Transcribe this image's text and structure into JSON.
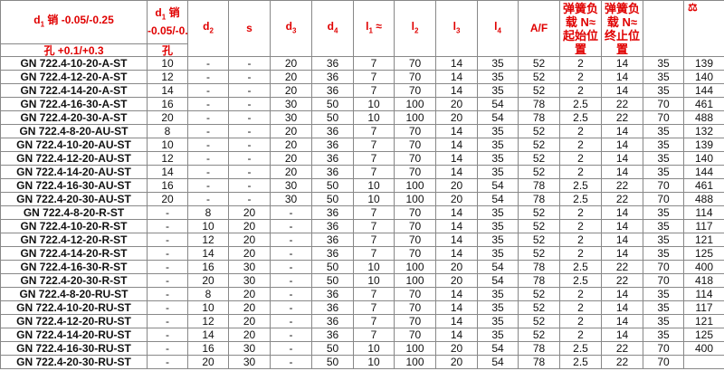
{
  "header": {
    "d1_pin": "销 -0.05/-0.25",
    "d1_pin_short": "销 -0.05/-0.25",
    "d1_hole": "孔 +0.1/+0.3",
    "d1_hole_short": "孔",
    "d": "d",
    "l": "l",
    "sub": {
      "1": "1",
      "2": "2",
      "3": "3",
      "4": "4"
    },
    "s": "s",
    "approx": "≈",
    "af": "A/F",
    "spring_start": "弹簧负载 N≈起始位置",
    "spring_end": "弹簧负载 N≈终止位置",
    "blank": "",
    "weight_icon": "⚖"
  },
  "colors": {
    "header_text": "#e00000",
    "grid": "#888888"
  },
  "rows": [
    [
      "GN 722.4-10-20-A-ST",
      "10",
      "-",
      "-",
      "20",
      "36",
      "7",
      "70",
      "14",
      "35",
      "52",
      "2",
      "14",
      "35",
      "139"
    ],
    [
      "GN 722.4-12-20-A-ST",
      "12",
      "-",
      "-",
      "20",
      "36",
      "7",
      "70",
      "14",
      "35",
      "52",
      "2",
      "14",
      "35",
      "140"
    ],
    [
      "GN 722.4-14-20-A-ST",
      "14",
      "-",
      "-",
      "20",
      "36",
      "7",
      "70",
      "14",
      "35",
      "52",
      "2",
      "14",
      "35",
      "144"
    ],
    [
      "GN 722.4-16-30-A-ST",
      "16",
      "-",
      "-",
      "30",
      "50",
      "10",
      "100",
      "20",
      "54",
      "78",
      "2.5",
      "22",
      "70",
      "461"
    ],
    [
      "GN 722.4-20-30-A-ST",
      "20",
      "-",
      "-",
      "30",
      "50",
      "10",
      "100",
      "20",
      "54",
      "78",
      "2.5",
      "22",
      "70",
      "488"
    ],
    [
      "GN 722.4-8-20-AU-ST",
      "8",
      "-",
      "-",
      "20",
      "36",
      "7",
      "70",
      "14",
      "35",
      "52",
      "2",
      "14",
      "35",
      "132"
    ],
    [
      "GN 722.4-10-20-AU-ST",
      "10",
      "-",
      "-",
      "20",
      "36",
      "7",
      "70",
      "14",
      "35",
      "52",
      "2",
      "14",
      "35",
      "139"
    ],
    [
      "GN 722.4-12-20-AU-ST",
      "12",
      "-",
      "-",
      "20",
      "36",
      "7",
      "70",
      "14",
      "35",
      "52",
      "2",
      "14",
      "35",
      "140"
    ],
    [
      "GN 722.4-14-20-AU-ST",
      "14",
      "-",
      "-",
      "20",
      "36",
      "7",
      "70",
      "14",
      "35",
      "52",
      "2",
      "14",
      "35",
      "144"
    ],
    [
      "GN 722.4-16-30-AU-ST",
      "16",
      "-",
      "-",
      "30",
      "50",
      "10",
      "100",
      "20",
      "54",
      "78",
      "2.5",
      "22",
      "70",
      "461"
    ],
    [
      "GN 722.4-20-30-AU-ST",
      "20",
      "-",
      "-",
      "30",
      "50",
      "10",
      "100",
      "20",
      "54",
      "78",
      "2.5",
      "22",
      "70",
      "488"
    ],
    [
      "GN 722.4-8-20-R-ST",
      "-",
      "8",
      "20",
      "-",
      "36",
      "7",
      "70",
      "14",
      "35",
      "52",
      "2",
      "14",
      "35",
      "114"
    ],
    [
      "GN 722.4-10-20-R-ST",
      "-",
      "10",
      "20",
      "-",
      "36",
      "7",
      "70",
      "14",
      "35",
      "52",
      "2",
      "14",
      "35",
      "117"
    ],
    [
      "GN 722.4-12-20-R-ST",
      "-",
      "12",
      "20",
      "-",
      "36",
      "7",
      "70",
      "14",
      "35",
      "52",
      "2",
      "14",
      "35",
      "121"
    ],
    [
      "GN 722.4-14-20-R-ST",
      "-",
      "14",
      "20",
      "-",
      "36",
      "7",
      "70",
      "14",
      "35",
      "52",
      "2",
      "14",
      "35",
      "125"
    ],
    [
      "GN 722.4-16-30-R-ST",
      "-",
      "16",
      "30",
      "-",
      "50",
      "10",
      "100",
      "20",
      "54",
      "78",
      "2.5",
      "22",
      "70",
      "400"
    ],
    [
      "GN 722.4-20-30-R-ST",
      "-",
      "20",
      "30",
      "-",
      "50",
      "10",
      "100",
      "20",
      "54",
      "78",
      "2.5",
      "22",
      "70",
      "418"
    ],
    [
      "GN 722.4-8-20-RU-ST",
      "-",
      "8",
      "20",
      "-",
      "36",
      "7",
      "70",
      "14",
      "35",
      "52",
      "2",
      "14",
      "35",
      "114"
    ],
    [
      "GN 722.4-10-20-RU-ST",
      "-",
      "10",
      "20",
      "-",
      "36",
      "7",
      "70",
      "14",
      "35",
      "52",
      "2",
      "14",
      "35",
      "117"
    ],
    [
      "GN 722.4-12-20-RU-ST",
      "-",
      "12",
      "20",
      "-",
      "36",
      "7",
      "70",
      "14",
      "35",
      "52",
      "2",
      "14",
      "35",
      "121"
    ],
    [
      "GN 722.4-14-20-RU-ST",
      "-",
      "14",
      "20",
      "-",
      "36",
      "7",
      "70",
      "14",
      "35",
      "52",
      "2",
      "14",
      "35",
      "125"
    ],
    [
      "GN 722.4-16-30-RU-ST",
      "-",
      "16",
      "30",
      "-",
      "50",
      "10",
      "100",
      "20",
      "54",
      "78",
      "2.5",
      "22",
      "70",
      "400"
    ],
    [
      "GN 722.4-20-30-RU-ST",
      "-",
      "20",
      "30",
      "-",
      "50",
      "10",
      "100",
      "20",
      "54",
      "78",
      "2.5",
      "22",
      "70",
      ""
    ]
  ]
}
